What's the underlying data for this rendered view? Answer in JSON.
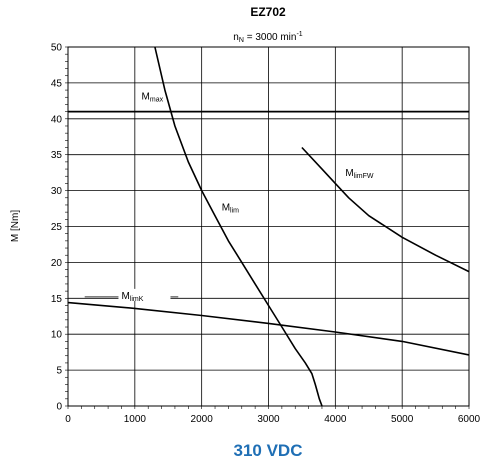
{
  "chart_data": {
    "type": "line",
    "title": "EZ702",
    "subtitle": {
      "main": "n",
      "sub": "N",
      "rest": " = 3000 min",
      "sup": "-1"
    },
    "ylabel": "M [Nm]",
    "xlabel": "",
    "xlim": [
      0,
      6000
    ],
    "ylim": [
      0,
      50
    ],
    "xticks": [
      0,
      1000,
      2000,
      3000,
      4000,
      5000,
      6000
    ],
    "yticks": [
      0,
      5,
      10,
      15,
      20,
      25,
      30,
      35,
      40,
      45,
      50
    ],
    "grid": true,
    "series": [
      {
        "name": "Mmax",
        "label_main": "M",
        "label_sub": "max",
        "x": [
          0,
          6000
        ],
        "y": [
          41,
          41
        ]
      },
      {
        "name": "Mlim",
        "label_main": "M",
        "label_sub": "lim",
        "x": [
          1300,
          1450,
          1600,
          1800,
          2000,
          2200,
          2400,
          2600,
          2800,
          3000,
          3200,
          3400,
          3550,
          3650,
          3700,
          3730,
          3760,
          3800
        ],
        "y": [
          50,
          44,
          39,
          34,
          30,
          26.5,
          23,
          20,
          17,
          14,
          11,
          8,
          6,
          4.5,
          3,
          2,
          1,
          0
        ]
      },
      {
        "name": "MlimFW",
        "label_main": "M",
        "label_sub": "limFW",
        "x": [
          3500,
          3800,
          4000,
          4200,
          4500,
          5000,
          5500,
          6000
        ],
        "y": [
          36,
          33,
          31,
          29,
          26.5,
          23.5,
          21,
          18.7
        ]
      },
      {
        "name": "MlimK",
        "label_main": "M",
        "label_sub": "limK",
        "x": [
          0,
          1000,
          2000,
          3000,
          4000,
          5000,
          6000
        ],
        "y": [
          14.4,
          13.6,
          12.6,
          11.5,
          10.3,
          9,
          7.1
        ]
      }
    ]
  },
  "footer": "310 VDC",
  "colors": {
    "line": "#000000",
    "grid": "#000000",
    "footer": "#1f6fb5"
  }
}
